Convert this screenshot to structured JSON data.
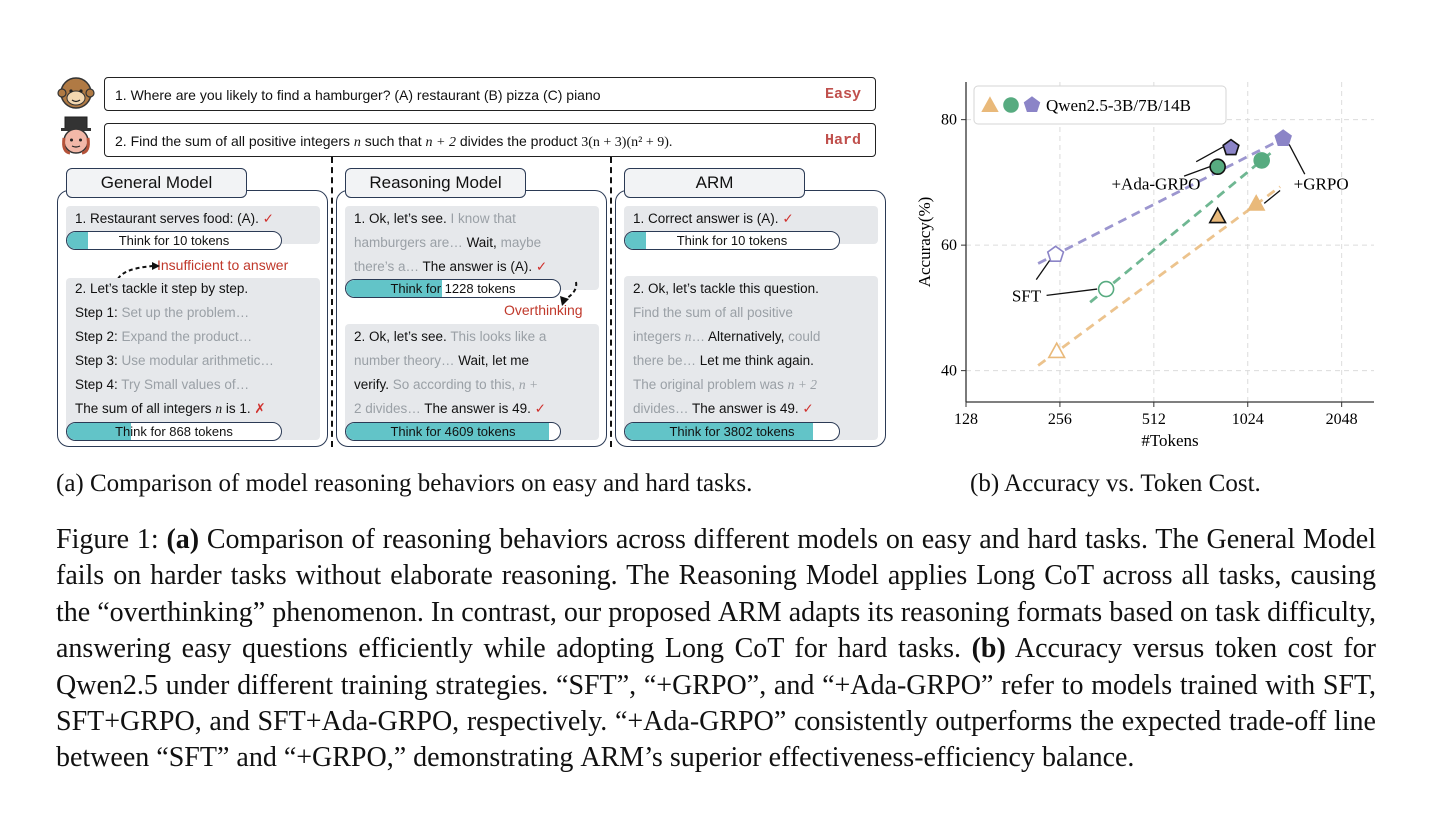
{
  "panel_a": {
    "questions": [
      {
        "text_prefix": "1. Where are you likely to find a hamburger? (A) restaurant  (B) pizza  (C) piano",
        "difficulty": "Easy"
      },
      {
        "text_prefix": "2. Find the sum of all positive integers ",
        "var": "n",
        "text_mid": " such that ",
        "expr1": "n + 2",
        "text_mid2": " divides the product ",
        "expr2": "3(n + 3)(n² + 9).",
        "difficulty": "Hard"
      }
    ],
    "columns": {
      "general": {
        "title": "General Model",
        "easy_answer": "1. Restaurant serves food: (A).",
        "easy_mark": "✓",
        "easy_pill": "Think for 10 tokens",
        "note": "Insufficient to answer",
        "hard_lines": [
          {
            "label": "2. Let’s tackle it step by step.",
            "rest": ""
          },
          {
            "label": "Step 1: ",
            "rest": "Set up the problem…"
          },
          {
            "label": "Step 2: ",
            "rest": "Expand the product…"
          },
          {
            "label": "Step 3: ",
            "rest": "Use modular arithmetic…"
          },
          {
            "label": "Step 4: ",
            "rest": "Try Small values of…"
          }
        ],
        "hard_answer_prefix": "The sum of all integers ",
        "hard_answer_var": "n",
        "hard_answer_suffix": " is 1.",
        "hard_mark": "✗",
        "hard_pill": "Think for 868 tokens"
      },
      "reasoning": {
        "title": "Reasoning Model",
        "easy_l1a": "1. Ok, let’s see. ",
        "easy_l1b": "I know that",
        "easy_l2a": "hamburgers are… ",
        "easy_l2b": "Wait, ",
        "easy_l2c": "maybe",
        "easy_l3a": "there’s a… ",
        "easy_l3b": "The answer is (A).",
        "easy_mark": "✓",
        "easy_pill": "Think for 1228 tokens",
        "note": "Overthinking",
        "hard_l1a": "2. Ok, let’s see. ",
        "hard_l1b": "This looks like a",
        "hard_l2a": "number theory… ",
        "hard_l2b": "Wait, let me",
        "hard_l3a": "verify. ",
        "hard_l3b": "So according to this, ",
        "hard_l3c": "n +",
        "hard_l4a": "2 divides… ",
        "hard_l4b": "The answer is 49.",
        "hard_mark": "✓",
        "hard_pill": "Think for 4609 tokens"
      },
      "arm": {
        "title": "ARM",
        "easy_answer": "1. Correct answer is (A).",
        "easy_mark": "✓",
        "easy_pill": "Think for 10 tokens",
        "hard_l1": "2. Ok, let’s tackle this question.",
        "hard_l2": "Find the sum of all positive",
        "hard_l3a": "integers ",
        "hard_l3b": "n",
        "hard_l3c": "… ",
        "hard_l3d": "Alternatively, ",
        "hard_l3e": "could",
        "hard_l4a": "there be… ",
        "hard_l4b": "Let me think again.",
        "hard_l5a": "The original problem was ",
        "hard_l5b": "n + 2",
        "hard_l6a": "divides… ",
        "hard_l6b": "The answer is 49.",
        "hard_mark": "✓",
        "hard_pill": "Think for 3802 tokens"
      }
    },
    "pill_fill_fraction": {
      "general_easy": 0.1,
      "general_hard": 0.3,
      "reasoning_easy": 0.45,
      "reasoning_hard": 0.95,
      "arm_easy": 0.1,
      "arm_hard": 0.88
    },
    "caption": "(a) Comparison of model reasoning behaviors on easy and hard tasks."
  },
  "chart_data": {
    "type": "scatter",
    "xlabel": "#Tokens",
    "ylabel": "Accuracy(%)",
    "x_scale": "log2",
    "xlim": [
      128,
      2600
    ],
    "ylim": [
      35,
      86
    ],
    "x_ticks": [
      128,
      256,
      512,
      1024,
      2048
    ],
    "x_tick_labels": [
      "128",
      "256",
      "512",
      "1024",
      "2048"
    ],
    "y_ticks": [
      40,
      60,
      80
    ],
    "y_tick_labels": [
      "40",
      "60",
      "80"
    ],
    "grid": true,
    "legend": {
      "label": "Qwen2.5-3B/7B/14B",
      "placement": "top-left"
    },
    "series": [
      {
        "name": "Qwen2.5-3B",
        "marker": "triangle",
        "color": "#e9b97a",
        "points": [
          {
            "x": 250,
            "y": 43
          },
          {
            "x": 1090,
            "y": 66.5
          }
        ],
        "trend_x": [
          218,
          1300
        ]
      },
      {
        "name": "Qwen2.5-7B",
        "marker": "circle",
        "color": "#57ab80",
        "points": [
          {
            "x": 360,
            "y": 53
          },
          {
            "x": 1135,
            "y": 73.5
          }
        ],
        "trend_x": [
          320,
          1250
        ]
      },
      {
        "name": "Qwen2.5-14B",
        "marker": "pentagon",
        "color": "#8b84c7",
        "points": [
          {
            "x": 248,
            "y": 58.5
          },
          {
            "x": 1330,
            "y": 77
          }
        ],
        "trend_x": [
          218,
          1420
        ]
      }
    ],
    "ada_grpo_points": [
      {
        "series": "Qwen2.5-3B",
        "x": 820,
        "y": 64.5
      },
      {
        "series": "Qwen2.5-7B",
        "x": 820,
        "y": 72.5
      },
      {
        "series": "Qwen2.5-14B",
        "x": 905,
        "y": 75.5
      }
    ],
    "annotations": [
      "SFT",
      "+Ada-GRPO",
      "+GRPO"
    ]
  },
  "panel_b_caption": "(b) Accuracy vs. Token Cost.",
  "figure_caption": {
    "lead": "Figure 1: ",
    "a_label": "(a)",
    "part1": " Comparison of reasoning behaviors across different models on easy and hard tasks. The General Model fails on harder tasks without elaborate reasoning. The Reasoning Model applies Long CoT across all tasks, causing the “overthinking” phenomenon. In contrast, our proposed ",
    "arm1": "ARM",
    "part2": " adapts its reasoning formats based on task difficulty, answering easy questions efficiently while adopting Long CoT for hard tasks.  ",
    "b_label": "(b)",
    "part3": " Accuracy versus token cost for Qwen2.5 under different training strategies. “SFT”, “+GRPO”, and “+Ada-GRPO” refer to models trained with SFT, SFT+GRPO, and SFT+Ada-GRPO, respectively. “+Ada-GRPO” consistently outperforms the expected trade-off line between “SFT” and “+GRPO,” demonstrating ",
    "arm2": "ARM",
    "part4": "’s superior effectiveness-efficiency balance."
  }
}
